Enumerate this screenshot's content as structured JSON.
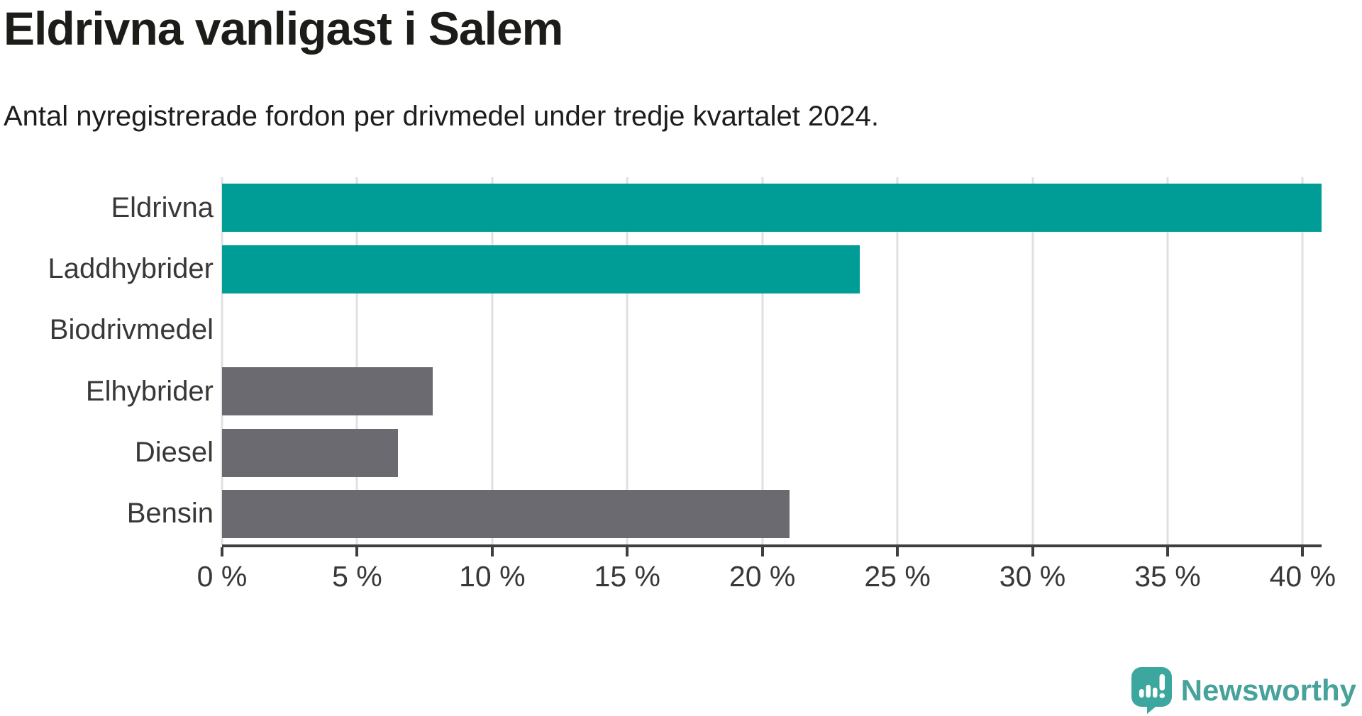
{
  "chart_data": {
    "type": "bar",
    "orientation": "horizontal",
    "title": "Eldrivna vanligast i Salem",
    "subtitle": "Antal nyregistrerade fordon per drivmedel under tredje kvartalet 2024.",
    "categories": [
      "Eldrivna",
      "Laddhybrider",
      "Biodrivmedel",
      "Elhybrider",
      "Diesel",
      "Bensin"
    ],
    "values": [
      40.7,
      23.6,
      0,
      7.8,
      6.5,
      21.0
    ],
    "unit": "%",
    "bar_colors": [
      "#009d96",
      "#009d96",
      "#009d96",
      "#6b6a70",
      "#6b6a70",
      "#6b6a70"
    ],
    "highlight_color": "#009d96",
    "default_color": "#6b6a70",
    "xlim": [
      0,
      40.7
    ],
    "xticks": [
      0,
      5,
      10,
      15,
      20,
      25,
      30,
      35,
      40
    ],
    "xtick_labels": [
      "0 %",
      "5 %",
      "10 %",
      "15 %",
      "20 %",
      "25 %",
      "30 %",
      "35 %",
      "40 %"
    ],
    "grid": true,
    "gridline_color": "#e0e0e0",
    "axis_color": "#3f3f3f",
    "legend": "none"
  },
  "logo": {
    "text": "Newsworthy",
    "icon": "newsworthy-pin-icon",
    "color": "#46a29b",
    "icon_color": "#3ba79f"
  }
}
